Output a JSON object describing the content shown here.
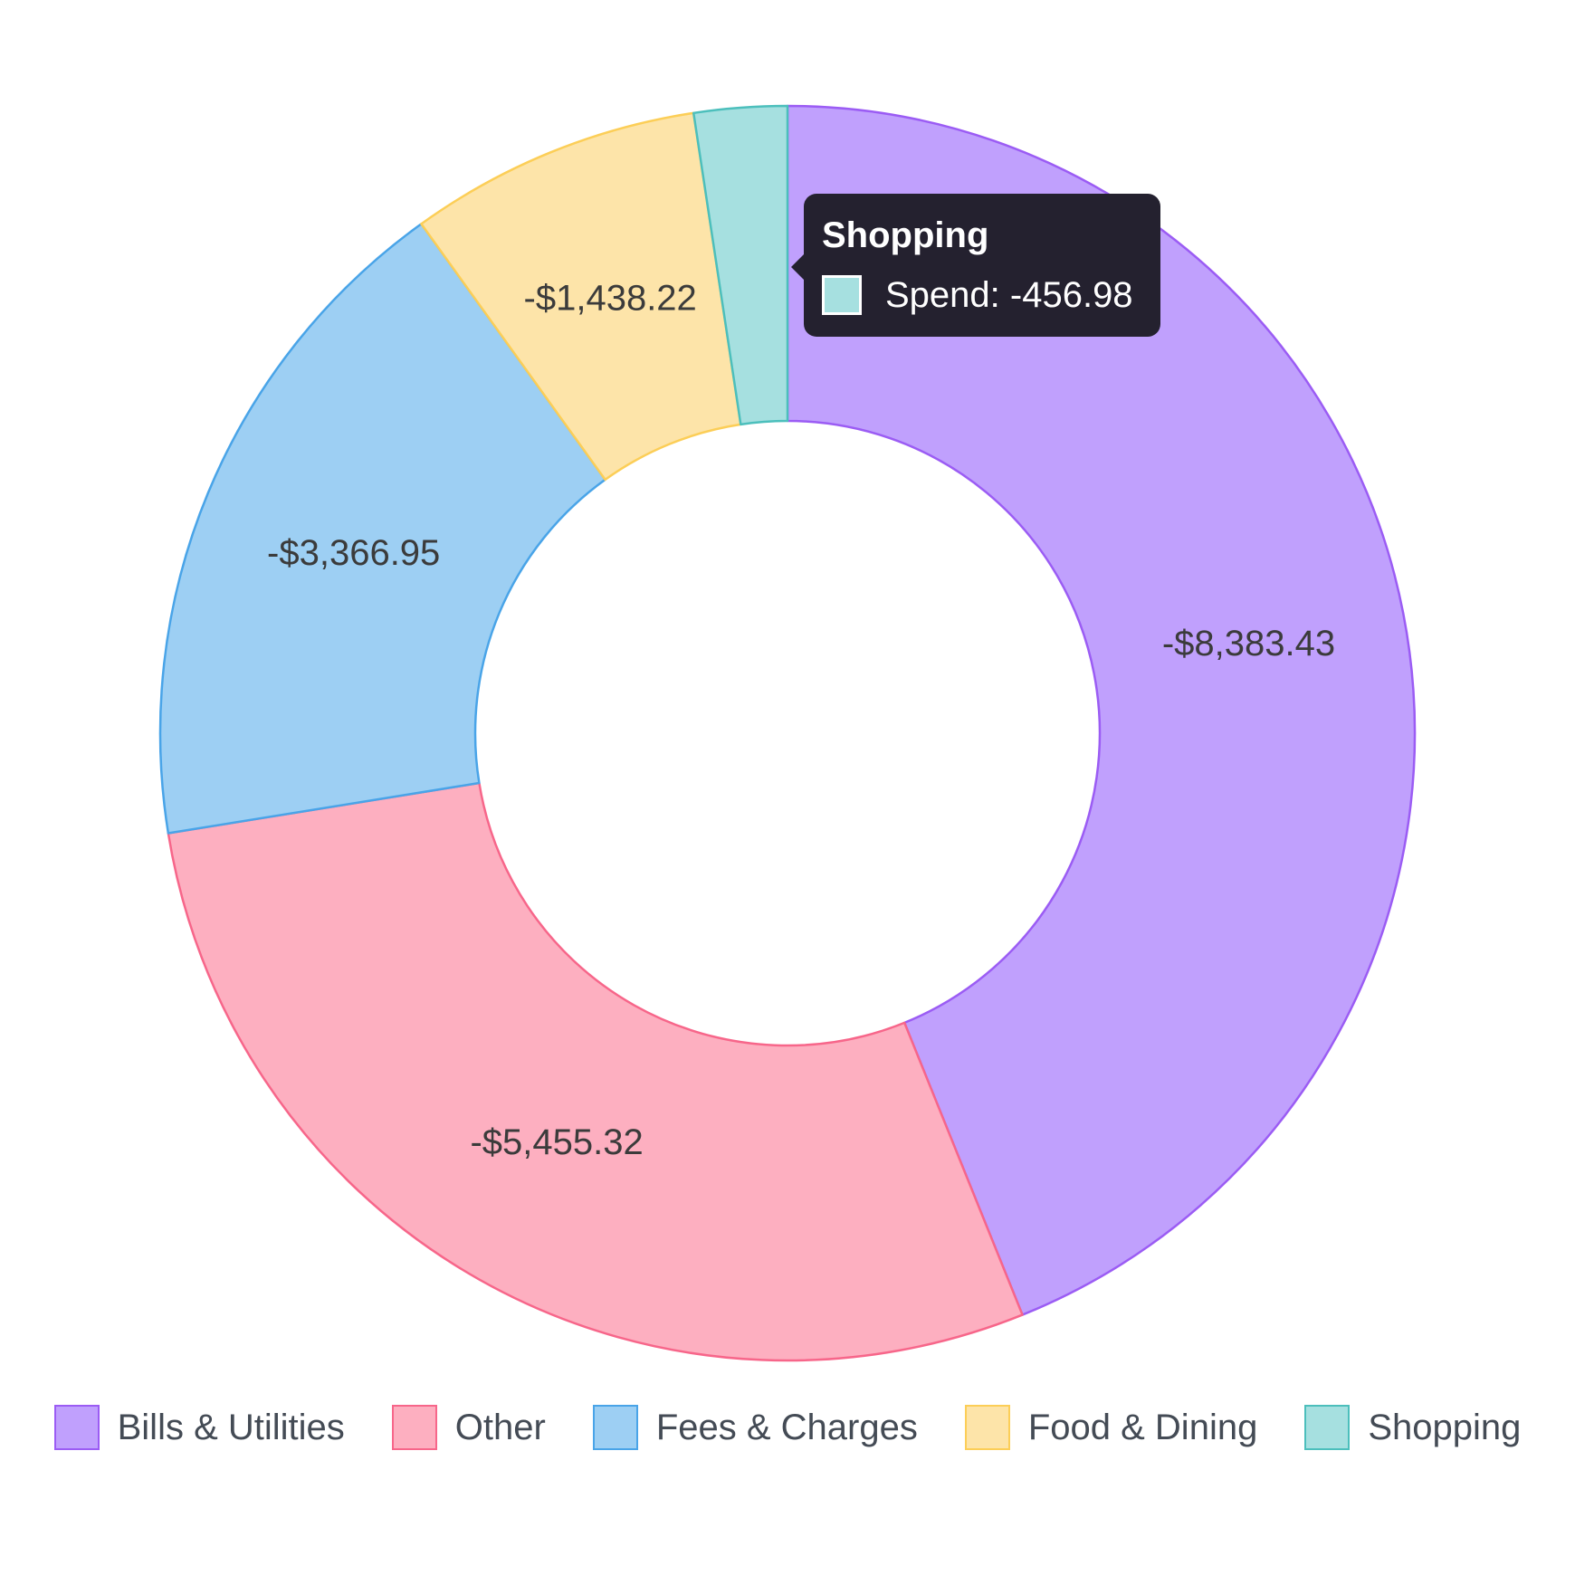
{
  "chart_data": {
    "type": "pie",
    "variant": "doughnut",
    "series": [
      {
        "name": "Spend",
        "categories": [
          "Bills & Utilities",
          "Other",
          "Fees & Charges",
          "Food & Dining",
          "Shopping"
        ],
        "values": [
          -8383.43,
          -5455.32,
          -3366.95,
          -1438.22,
          -456.98
        ],
        "labels": [
          "-$8,383.43",
          "-$5,455.32",
          "-$3,366.95",
          "-$1,438.22",
          ""
        ]
      }
    ],
    "colors": {
      "fill": [
        "#c0a0fd",
        "#fdafc0",
        "#9dcff3",
        "#fde4a9",
        "#a6e0e0"
      ],
      "stroke": [
        "#9b5cf4",
        "#f7668a",
        "#49a4e8",
        "#fcce57",
        "#4cbfbc"
      ]
    },
    "legend": {
      "position": "bottom",
      "items": [
        "Bills & Utilities",
        "Other",
        "Fees & Charges",
        "Food & Dining",
        "Shopping"
      ]
    }
  },
  "tooltip": {
    "title": "Shopping",
    "text": "Spend: -456.98",
    "category_index": 4
  }
}
